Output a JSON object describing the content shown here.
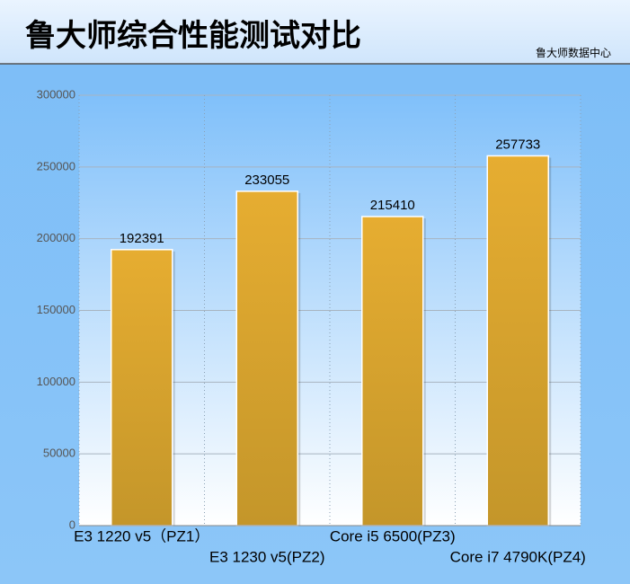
{
  "chart_data": {
    "type": "bar",
    "title": "鲁大师综合性能测试对比",
    "subtitle": "鲁大师数据中心",
    "categories": [
      "E3 1220 v5（PZ1）",
      "E3 1230 v5(PZ2)",
      "Core i5 6500(PZ3)",
      "Core i7 4790K(PZ4)"
    ],
    "values": [
      192391,
      233055,
      215410,
      257733
    ],
    "color": "#e0a830",
    "ylim": [
      0,
      300000
    ],
    "yticks": [
      0,
      50000,
      100000,
      150000,
      200000,
      250000,
      300000
    ],
    "grid": true
  }
}
